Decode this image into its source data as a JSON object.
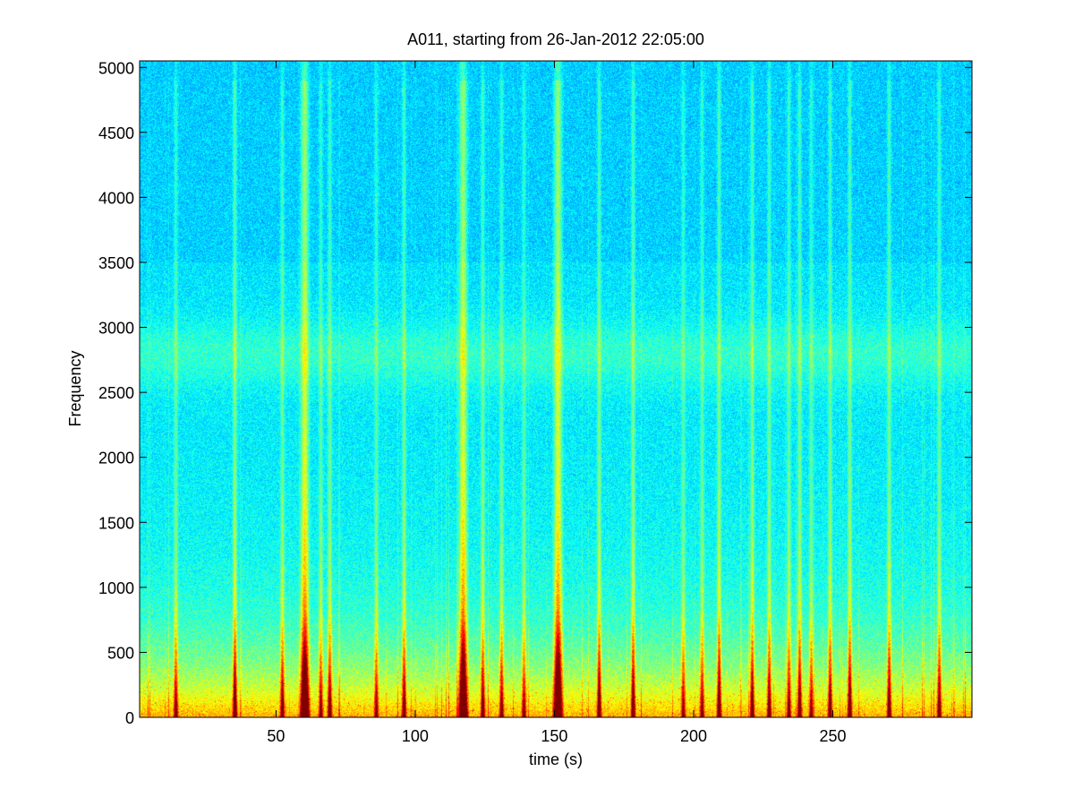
{
  "chart_data": {
    "type": "heatmap",
    "title": "A011, starting from 26-Jan-2012 22:05:00",
    "xlabel": "time (s)",
    "ylabel": "Frequency",
    "xlim": [
      1,
      300
    ],
    "ylim": [
      0,
      5050
    ],
    "x_ticks": [
      50,
      100,
      150,
      200,
      250
    ],
    "y_ticks": [
      0,
      500,
      1000,
      1500,
      2000,
      2500,
      3000,
      3500,
      4000,
      4500,
      5000
    ],
    "colormap": "jet",
    "colors": {
      "low": "#11d4dc",
      "mid": "#3dea8c",
      "high": "#ffff00",
      "peak": "#e01010"
    },
    "energy_band_frequency": 2800,
    "strong_events_time": [
      60,
      117,
      151
    ],
    "moderate_events_time": [
      14,
      35,
      52,
      66,
      69,
      86,
      96,
      124,
      131,
      139,
      166,
      178,
      196,
      203,
      209,
      221,
      227,
      234,
      238,
      242,
      249,
      256,
      270,
      288
    ]
  }
}
